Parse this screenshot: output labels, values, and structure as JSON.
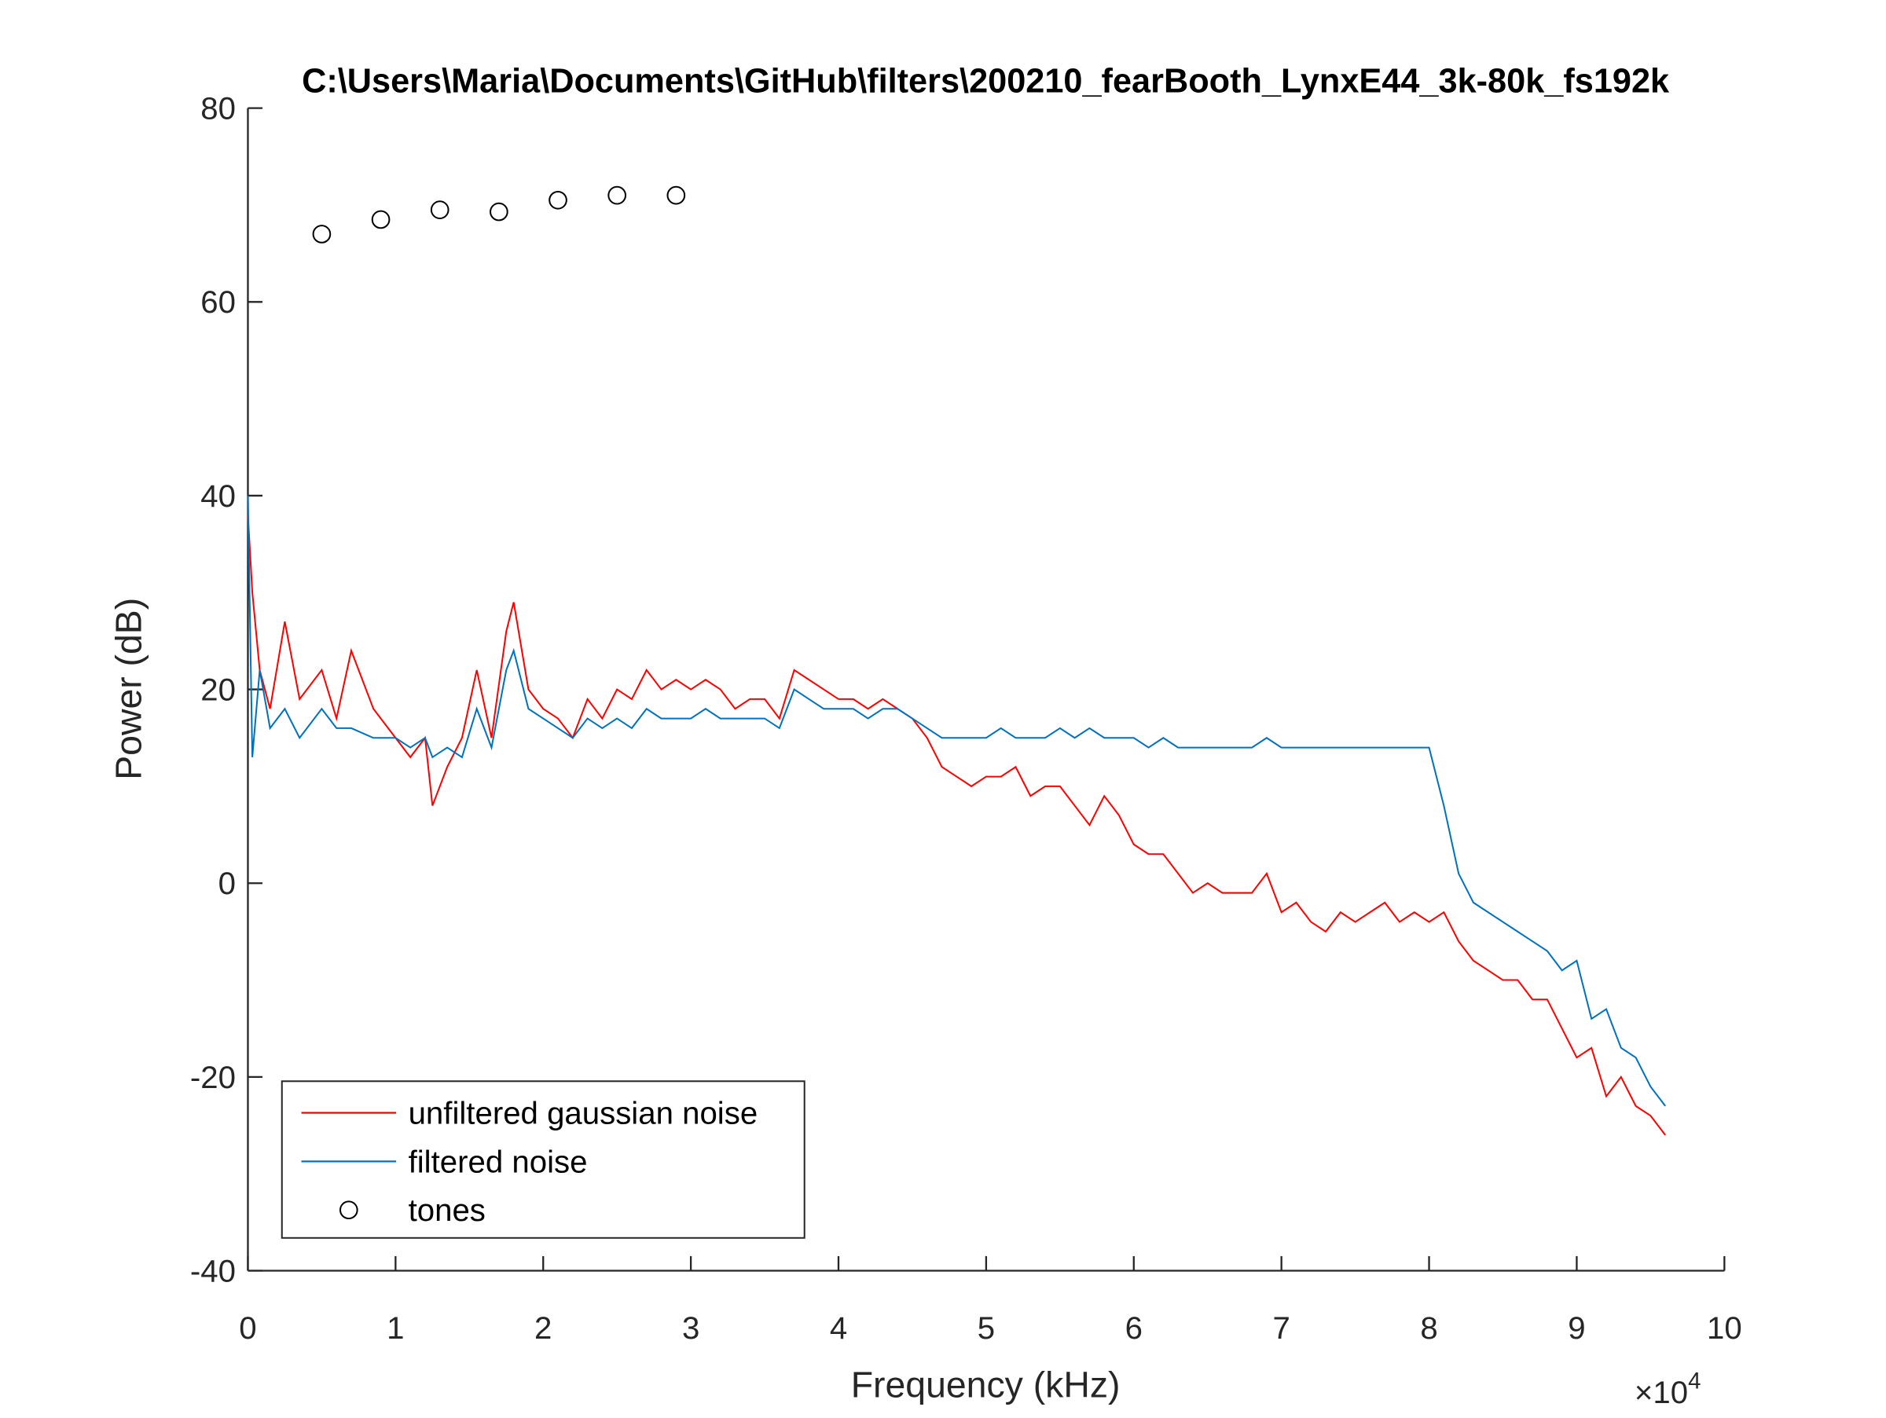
{
  "chart_data": {
    "type": "line",
    "title": "C:\\Users\\Maria\\Documents\\GitHub\\filters\\200210_fearBooth_LynxE44_3k-80k_fs192k",
    "x_label": "Frequency (kHz)",
    "y_label": "Power (dB)",
    "x_exponent": {
      "base": "×10",
      "power": "4"
    },
    "x": [
      0,
      300,
      800,
      1500,
      2500,
      3500,
      5000,
      6000,
      7000,
      8500,
      10000,
      11000,
      12000,
      12500,
      13500,
      14500,
      15500,
      16500,
      17500,
      18000,
      19000,
      20000,
      21000,
      22000,
      23000,
      24000,
      25000,
      26000,
      27000,
      28000,
      29000,
      30000,
      31000,
      32000,
      33000,
      34000,
      35000,
      36000,
      37000,
      38000,
      39000,
      40000,
      41000,
      42000,
      43000,
      44000,
      45000,
      46000,
      47000,
      48000,
      49000,
      50000,
      51000,
      52000,
      53000,
      54000,
      55000,
      56000,
      57000,
      58000,
      59000,
      60000,
      61000,
      62000,
      63000,
      64000,
      65000,
      66000,
      67000,
      68000,
      69000,
      70000,
      71000,
      72000,
      73000,
      74000,
      75000,
      76000,
      77000,
      78000,
      79000,
      80000,
      81000,
      82000,
      83000,
      84000,
      85000,
      86000,
      87000,
      88000,
      89000,
      90000,
      91000,
      92000,
      93000,
      94000,
      95000,
      96000
    ],
    "series": [
      {
        "name": "unfiltered gaussian noise",
        "color": "#ff0000",
        "style": "line",
        "values": [
          38,
          30,
          22,
          18,
          27,
          19,
          22,
          17,
          24,
          18,
          15,
          13,
          15,
          8,
          12,
          15,
          22,
          15,
          26,
          29,
          20,
          18,
          17,
          15,
          19,
          17,
          20,
          19,
          22,
          20,
          21,
          20,
          21,
          20,
          18,
          19,
          19,
          17,
          22,
          21,
          20,
          19,
          19,
          18,
          19,
          18,
          17,
          15,
          12,
          11,
          10,
          11,
          11,
          12,
          9,
          10,
          10,
          8,
          6,
          9,
          7,
          4,
          3,
          3,
          1,
          -1,
          0,
          -1,
          -1,
          -1,
          1,
          -3,
          -2,
          -4,
          -5,
          -3,
          -4,
          -3,
          -2,
          -4,
          -3,
          -4,
          -3,
          -6,
          -8,
          -9,
          -10,
          -10,
          -12,
          -12,
          -15,
          -18,
          -17,
          -22,
          -20,
          -23,
          -24,
          -26
        ]
      },
      {
        "name": "filtered noise",
        "color": "#0072bd",
        "style": "line",
        "values": [
          40,
          13,
          22,
          16,
          18,
          15,
          18,
          16,
          16,
          15,
          15,
          14,
          15,
          13,
          14,
          13,
          18,
          14,
          22,
          24,
          18,
          17,
          16,
          15,
          17,
          16,
          17,
          16,
          18,
          17,
          17,
          17,
          18,
          17,
          17,
          17,
          17,
          16,
          20,
          19,
          18,
          18,
          18,
          17,
          18,
          18,
          17,
          16,
          15,
          15,
          15,
          15,
          16,
          15,
          15,
          15,
          16,
          15,
          16,
          15,
          15,
          15,
          14,
          15,
          14,
          14,
          14,
          14,
          14,
          14,
          15,
          14,
          14,
          14,
          14,
          14,
          14,
          14,
          14,
          14,
          14,
          14,
          8,
          1,
          -2,
          -3,
          -4,
          -5,
          -6,
          -7,
          -9,
          -8,
          -14,
          -13,
          -17,
          -18,
          -21,
          -23
        ]
      },
      {
        "name": "tones",
        "color": "#000000",
        "style": "marker",
        "x": [
          5000,
          9000,
          13000,
          17000,
          21000,
          25000,
          29000
        ],
        "values": [
          67,
          68.5,
          69.5,
          69.3,
          70.5,
          71,
          71
        ]
      }
    ],
    "xlim": [
      0,
      100000
    ],
    "xticks": [
      {
        "value": 0,
        "label": "0"
      },
      {
        "value": 10000,
        "label": "1"
      },
      {
        "value": 20000,
        "label": "2"
      },
      {
        "value": 30000,
        "label": "3"
      },
      {
        "value": 40000,
        "label": "4"
      },
      {
        "value": 50000,
        "label": "5"
      },
      {
        "value": 60000,
        "label": "6"
      },
      {
        "value": 70000,
        "label": "7"
      },
      {
        "value": 80000,
        "label": "8"
      },
      {
        "value": 90000,
        "label": "9"
      },
      {
        "value": 100000,
        "label": "10"
      }
    ],
    "ylim": [
      -40,
      80
    ],
    "yticks": [
      -40,
      -20,
      0,
      20,
      40,
      60,
      80
    ],
    "legend": "southwest",
    "grid": false
  }
}
